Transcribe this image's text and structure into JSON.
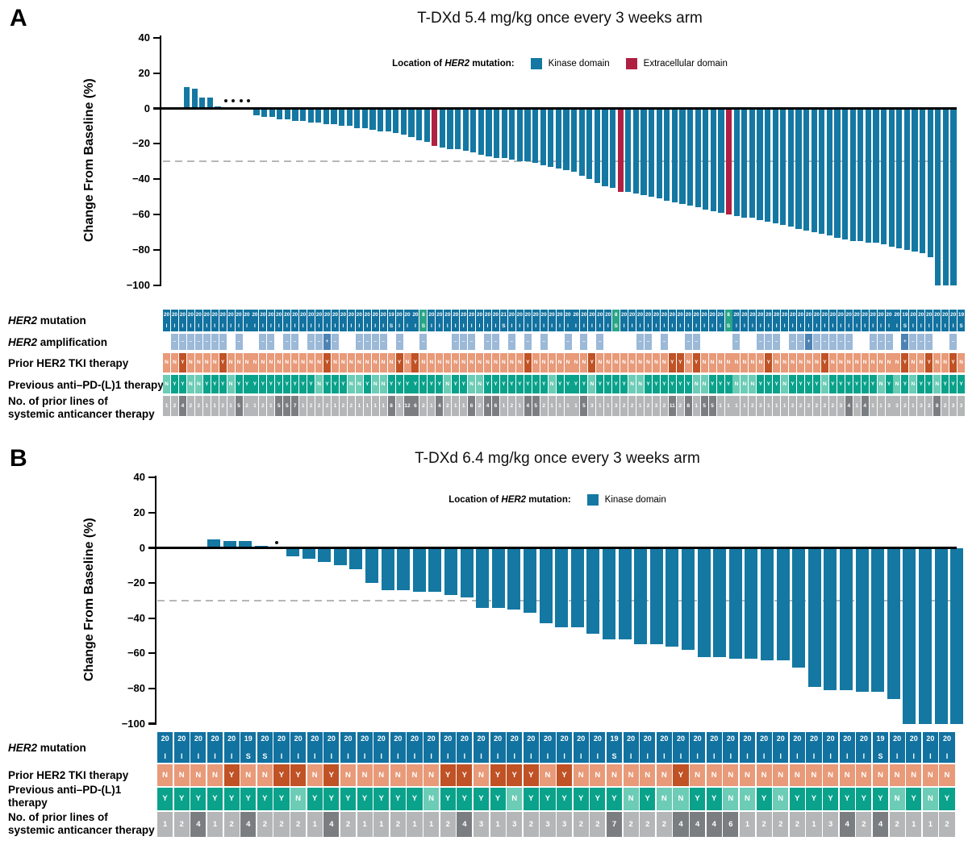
{
  "panels": [
    {
      "panel_label": "A",
      "title": "T-DXd 5.4 mg/kg once every 3 weeks arm",
      "y_axis_label": "Change From Baseline (%)",
      "legend": {
        "caption_pre": "Location of ",
        "caption_gene": "HER2",
        "caption_post": " mutation:",
        "items": [
          {
            "label": "Kinase domain",
            "color": "#1478a3"
          },
          {
            "label": "Extracellular domain",
            "color": "#b02042"
          }
        ]
      },
      "tracks": [
        {
          "gene": "HER2",
          "rest": " mutation"
        },
        {
          "gene": "HER2",
          "rest": " amplification"
        },
        {
          "label": "Prior HER2 TKI therapy"
        },
        {
          "label": "Previous anti–PD-(L)1 therapy"
        },
        {
          "line1": "No. of prior lines of",
          "line2": "systemic anticancer therapy"
        }
      ]
    },
    {
      "panel_label": "B",
      "title": "T-DXd 6.4 mg/kg once every 3 weeks arm",
      "y_axis_label": "Change From Baseline (%)",
      "legend": {
        "caption_pre": "Location of ",
        "caption_gene": "HER2",
        "caption_post": " mutation:",
        "items": [
          {
            "label": "Kinase domain",
            "color": "#1478a3"
          }
        ]
      },
      "tracks": [
        {
          "gene": "HER2",
          "rest": " mutation"
        },
        {
          "label": "Prior HER2 TKI therapy"
        },
        {
          "line1": "Previous anti–PD-(L)1",
          "line2": "therapy"
        },
        {
          "line1": "No. of prior lines of",
          "line2": "systemic anticancer therapy"
        }
      ]
    }
  ],
  "colors": {
    "kinase_domain": "#1478a3",
    "extracellular_domain": "#b02042",
    "mutation_cell_blue": "#1272a0",
    "mutation_cell_green": "#2aa587",
    "amplification_minus": "#9cb9d8",
    "amplification_plus": "#4d82b4",
    "tki_no": "#e89a79",
    "tki_yes": "#c05225",
    "pd_yes": "#0aa28b",
    "pd_no": "#6cccb6",
    "lines_light": "#b4b6b8",
    "lines_dark": "#7b7e81",
    "dashed_reference": "#b7b7b7",
    "axis": "#000000"
  },
  "chart_data": [
    {
      "type": "bar",
      "title": "T-DXd 5.4 mg/kg once every 3 weeks arm",
      "ylabel": "Change From Baseline (%)",
      "ylim": [
        -100,
        40
      ],
      "yticks": [
        40,
        20,
        0,
        -20,
        -40,
        -60,
        -80,
        -100
      ],
      "reference_line_y": -30,
      "n_patients": 100,
      "values": [
        12,
        11,
        6,
        6,
        1,
        0,
        0,
        0,
        0,
        -4,
        -5,
        -5,
        -6,
        -6,
        -7,
        -7,
        -8,
        -8,
        -9,
        -9,
        -10,
        -10,
        -11,
        -11,
        -12,
        -13,
        -13,
        -14,
        -15,
        -16,
        -18,
        -19,
        -21,
        -22,
        -23,
        -23,
        -24,
        -25,
        -26,
        -27,
        -28,
        -28,
        -29,
        -30,
        -30,
        -31,
        -32,
        -33,
        -34,
        -35,
        -36,
        -38,
        -40,
        -42,
        -44,
        -45,
        -47,
        -47,
        -48,
        -49,
        -50,
        -51,
        -52,
        -53,
        -54,
        -55,
        -56,
        -57,
        -58,
        -59,
        -60,
        -61,
        -62,
        -62,
        -63,
        -64,
        -65,
        -66,
        -67,
        -68,
        -69,
        -70,
        -71,
        -72,
        -73,
        -74,
        -75,
        -75,
        -76,
        -76,
        -77,
        -78,
        -79,
        -80,
        -81,
        -82,
        -84,
        -100,
        -100,
        -100
      ],
      "asterisk_cols": [
        6,
        7,
        8,
        9
      ],
      "extracellular_domain_cols": [
        33,
        57,
        71
      ],
      "annotations": {
        "her2_mutation_exon_default": "20",
        "her2_mutation_type_default": "I",
        "her2_mutation_overrides": {
          "29": {
            "exon": "19",
            "type": "S"
          },
          "33": {
            "exon": "8",
            "type": "S"
          },
          "43": {
            "exon": "21",
            "type": "S"
          },
          "57": {
            "exon": "8",
            "type": "S"
          },
          "71": {
            "exon": "8",
            "type": "S"
          },
          "93": {
            "exon": "19",
            "type": "S"
          },
          "100": {
            "exon": "19",
            "type": "S"
          }
        },
        "her2_amplification": [
          "",
          "–",
          "–",
          "–",
          "–",
          "–",
          "–",
          "–",
          "",
          "–",
          "",
          "",
          "–",
          "–",
          "",
          "–",
          "–",
          "",
          "–",
          "–",
          "+",
          "–",
          "",
          "",
          "–",
          "–",
          "–",
          "–",
          "",
          "–",
          "",
          "",
          "–",
          "",
          "",
          "",
          "–",
          "–",
          "–",
          "",
          "–",
          "–",
          "",
          "–",
          "",
          "–",
          "",
          "–",
          "",
          "",
          "–",
          "",
          "–",
          "",
          "–",
          "",
          "",
          "",
          "",
          "–",
          "–",
          "",
          "–",
          "",
          "",
          "–",
          "–",
          "",
          "",
          "",
          "",
          "–",
          "",
          "",
          "–",
          "–",
          "–",
          "",
          "–",
          "–",
          "+",
          "–",
          "–",
          "–",
          "–",
          "–",
          "",
          "",
          "–",
          "–",
          "–",
          "",
          "+",
          "–",
          "–",
          "–",
          "",
          "",
          "–",
          ""
        ],
        "prior_her2_tki": "NNYNNNNYNNNNNNNNNNNNYNNNNNNNNYNYNNNNNNNNNNNNNYNNNNNNNYNNNNNNNNNYYNYNNNNNNNNYNNNNNNYNNNNNNNNNYNNYNNYN",
        "previous_anti_pd_l1": "NYYNNYYYNYYYYYYYYYYNYYYNNYNNYYYYYYYNYYNNYYYYYYYYNYYYYNYYYYNNYYYYYYNNYYYNNNYYYNYYYYNYYYYYYNYNYNYYNYYY",
        "prior_lines": [
          1,
          2,
          4,
          2,
          2,
          1,
          1,
          2,
          1,
          5,
          2,
          1,
          2,
          1,
          5,
          5,
          7,
          1,
          2,
          2,
          2,
          1,
          2,
          2,
          1,
          1,
          1,
          1,
          8,
          1,
          12,
          6,
          2,
          1,
          4,
          2,
          1,
          1,
          6,
          2,
          4,
          6,
          1,
          2,
          1,
          4,
          5,
          2,
          1,
          1,
          1,
          1,
          5,
          3,
          1,
          1,
          3,
          2,
          2,
          1,
          2,
          3,
          2,
          11,
          2,
          8,
          1,
          5,
          5,
          1,
          1,
          1,
          1,
          2,
          3,
          1,
          1,
          1,
          2,
          2,
          2,
          2,
          2,
          2,
          3,
          4,
          1,
          4,
          1,
          1,
          3,
          3,
          2,
          1,
          3,
          2,
          8,
          2,
          3,
          3
        ]
      }
    },
    {
      "type": "bar",
      "title": "T-DXd 6.4 mg/kg once every 3 weeks arm",
      "ylabel": "Change From Baseline (%)",
      "ylim": [
        -100,
        40
      ],
      "yticks": [
        40,
        20,
        0,
        -20,
        -40,
        -60,
        -80,
        -100
      ],
      "reference_line_y": -30,
      "n_patients": 48,
      "values": [
        5,
        4,
        4,
        1,
        0,
        -5,
        -6,
        -8,
        -10,
        -12,
        -20,
        -24,
        -24,
        -25,
        -25,
        -27,
        -28,
        -34,
        -34,
        -35,
        -37,
        -43,
        -45,
        -45,
        -49,
        -52,
        -52,
        -55,
        -55,
        -56,
        -58,
        -62,
        -62,
        -63,
        -63,
        -64,
        -64,
        -68,
        -79,
        -81,
        -81,
        -82,
        -82,
        -86,
        -100,
        -100,
        -100,
        -100
      ],
      "asterisk_cols": [
        5
      ],
      "extracellular_domain_cols": [],
      "annotations": {
        "her2_mutation_exon_default": "20",
        "her2_mutation_type_default": "I",
        "her2_mutation_overrides": {
          "6": {
            "exon": "19",
            "type": "S"
          },
          "7": {
            "exon": "20",
            "type": "S"
          },
          "28": {
            "exon": "19",
            "type": "S"
          },
          "44": {
            "exon": "19",
            "type": "S"
          }
        },
        "prior_her2_tki": "NNNNYNNYYNYNNNNNNYYNYYYNYNNNNNNYNNNNNNNNNNNNNNNN",
        "previous_anti_pd_l1": "YYYYYYYYNYYYYYYYNYYYYNYYYYYYNYNNYYNNYNYYYYYYNYNY",
        "prior_lines": [
          1,
          2,
          4,
          1,
          2,
          4,
          2,
          2,
          2,
          1,
          4,
          2,
          1,
          1,
          2,
          1,
          1,
          2,
          4,
          3,
          1,
          3,
          2,
          3,
          3,
          2,
          2,
          7,
          2,
          2,
          2,
          4,
          4,
          4,
          6,
          1,
          2,
          2,
          2,
          1,
          3,
          4,
          2,
          4,
          2,
          1,
          1,
          2
        ]
      }
    }
  ]
}
